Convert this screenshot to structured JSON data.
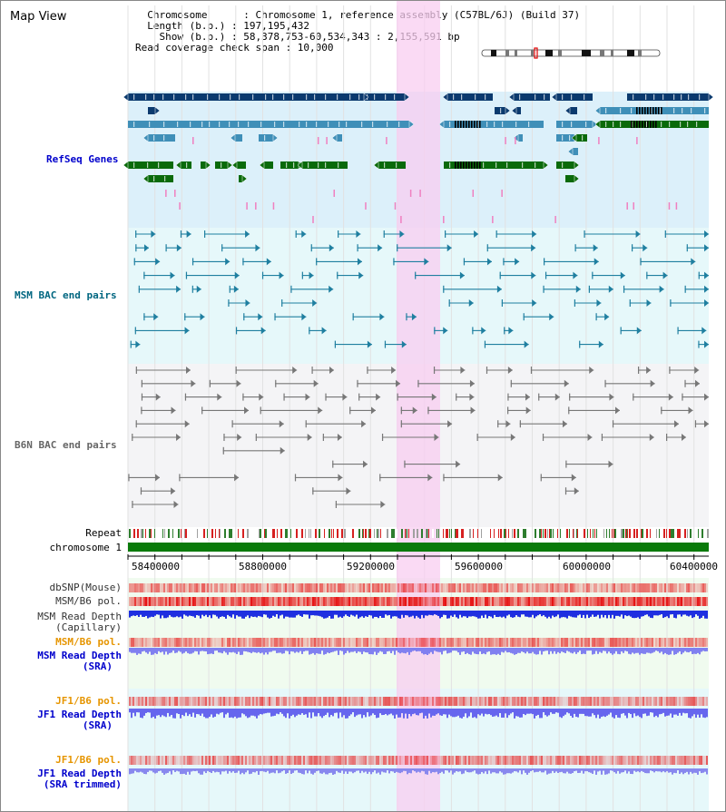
{
  "header": {
    "title": "Map View",
    "info_lines": [
      "  Chromosome      : Chromosome 1, reference assembly (C57BL/6J) (Build 37)",
      "  Length (b.p.) : 197,195,432",
      "    Show (b.p.) : 58,378,753-60,534,343 : 2,155,591 bp",
      "Read coverage check span : 10,000"
    ]
  },
  "tracks": {
    "refseq": "RefSeq Genes",
    "msm_bac": "MSM BAC end pairs",
    "b6n_bac": "B6N BAC end pairs",
    "repeat": "Repeat",
    "chromosome": "chromosome 1",
    "dbsnp": "dbSNP(Mouse)",
    "msm_pol_1": "MSM/B6 pol.",
    "msm_depth_cap_1": "MSM Read Depth",
    "msm_depth_cap_2": "(Capillary)",
    "msm_pol_2": "MSM/B6 pol.",
    "msm_depth_sra_1": "MSM Read Depth",
    "msm_depth_sra_2": "(SRA)",
    "jf1_pol_1": "JF1/B6 pol.",
    "jf1_depth_sra_1": "JF1 Read Depth",
    "jf1_depth_sra_2": "(SRA)",
    "jf1_pol_2": "JF1/B6 pol.",
    "jf1_depth_trim_1": "JF1 Read Depth",
    "jf1_depth_trim_2": "(SRA trimmed)"
  },
  "axis": {
    "ticks": [
      "58400000",
      "58800000",
      "59200000",
      "59600000",
      "60000000",
      "60400000"
    ]
  },
  "colors": {
    "refseq_label": "#0000cc",
    "msm_label": "#006680",
    "orange_label": "#e69500",
    "blue_label": "#0000cc",
    "highlight": "#f8cdf0",
    "gene_dark": "#0b3a6e",
    "gene_mid": "#3f8fb8",
    "gene_green": "#0a6a0a",
    "bac_teal": "#1f7fa0",
    "bac_gray": "#777777"
  }
}
